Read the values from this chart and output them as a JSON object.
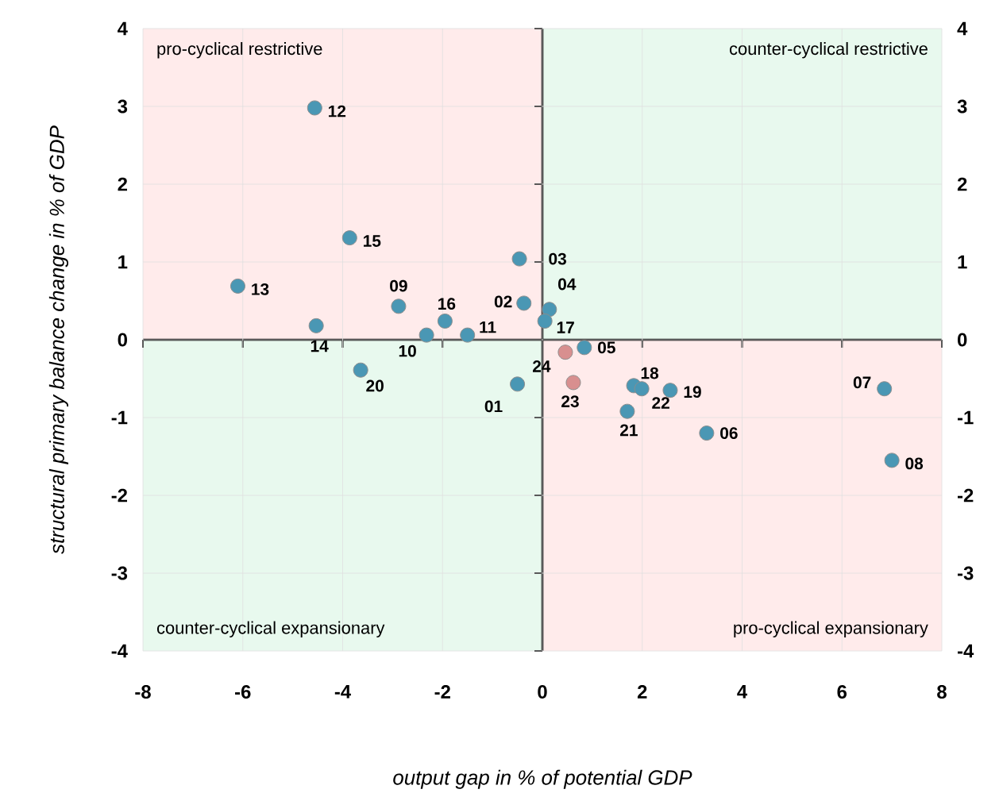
{
  "chart_data": {
    "type": "scatter",
    "xlabel": "output gap in % of potential GDP",
    "ylabel": "structural primary balance change in % of GDP",
    "xlim": [
      -8,
      8
    ],
    "xticks": [
      -8,
      -6,
      -4,
      -2,
      0,
      2,
      4,
      6,
      8
    ],
    "ylim": [
      -4,
      4
    ],
    "yticks": [
      -4,
      -3,
      -2,
      -1,
      0,
      1,
      2,
      3,
      4
    ],
    "y2lim": [
      -4,
      4
    ],
    "y2ticks": [
      -4,
      -3,
      -2,
      -1,
      0,
      1,
      2,
      3,
      4
    ],
    "grid": true,
    "series": [
      {
        "color": "#4a97b4",
        "x": [
          -0.5,
          -0.37,
          -0.46,
          0.14,
          0.84,
          3.29,
          6.85,
          7.0,
          -2.88,
          -2.32,
          -1.5,
          -4.56,
          -6.1,
          -4.53,
          -3.86,
          -1.95,
          0.05,
          1.83,
          2.56,
          -3.64,
          1.7,
          1.99
        ],
        "values": [
          -0.57,
          0.47,
          1.04,
          0.39,
          -0.1,
          -1.2,
          -0.63,
          -1.55,
          0.43,
          0.06,
          0.06,
          2.98,
          0.69,
          0.18,
          1.31,
          0.24,
          0.24,
          -0.59,
          -0.65,
          -0.39,
          -0.92,
          -0.63
        ]
      },
      {
        "color": "#d88f8f",
        "x": [
          0.62,
          0.46
        ],
        "values": [
          -0.55,
          -0.16
        ]
      }
    ],
    "annotations": [
      "pro-cyclical restrictive",
      "counter-cyclical restrictive",
      "counter-cyclical expansionary",
      "pro-cyclical expansionary",
      {
        "text": "01",
        "x": -0.5,
        "y": -0.57
      },
      {
        "text": "02",
        "x": -0.37,
        "y": 0.47
      },
      {
        "text": "03",
        "x": -0.46,
        "y": 1.04
      },
      {
        "text": "04",
        "x": 0.14,
        "y": 0.39
      },
      {
        "text": "05",
        "x": 0.84,
        "y": -0.1
      },
      {
        "text": "06",
        "x": 3.29,
        "y": -1.2
      },
      {
        "text": "07",
        "x": 6.85,
        "y": -0.63
      },
      {
        "text": "08",
        "x": 7.0,
        "y": -1.55
      },
      {
        "text": "09",
        "x": -2.88,
        "y": 0.43
      },
      {
        "text": "10",
        "x": -2.32,
        "y": 0.06
      },
      {
        "text": "11",
        "x": -1.5,
        "y": 0.06
      },
      {
        "text": "12",
        "x": -4.56,
        "y": 2.98
      },
      {
        "text": "13",
        "x": -6.1,
        "y": 0.69
      },
      {
        "text": "14",
        "x": -4.53,
        "y": 0.18
      },
      {
        "text": "15",
        "x": -3.86,
        "y": 1.31
      },
      {
        "text": "16",
        "x": -1.95,
        "y": 0.24
      },
      {
        "text": "17",
        "x": 0.05,
        "y": 0.24
      },
      {
        "text": "18",
        "x": 1.83,
        "y": -0.59
      },
      {
        "text": "19",
        "x": 2.56,
        "y": -0.65
      },
      {
        "text": "20",
        "x": -3.64,
        "y": -0.39
      },
      {
        "text": "21",
        "x": 1.7,
        "y": -0.92
      },
      {
        "text": "22",
        "x": 1.99,
        "y": -0.63
      },
      {
        "text": "23",
        "x": 0.62,
        "y": -0.55
      },
      {
        "text": "24",
        "x": 0.46,
        "y": -0.16
      }
    ]
  }
}
